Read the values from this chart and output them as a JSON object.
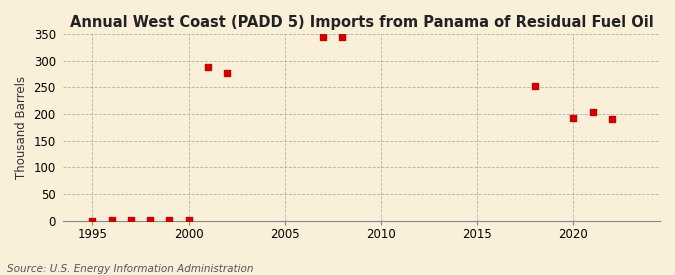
{
  "title": "Annual West Coast (PADD 5) Imports from Panama of Residual Fuel Oil",
  "ylabel": "Thousand Barrels",
  "source": "Source: U.S. Energy Information Administration",
  "background_color": "#faefd9",
  "grid_color": "#aaaaaa",
  "marker_color": "#cc0000",
  "data_points": [
    [
      1995,
      0
    ],
    [
      1996,
      2
    ],
    [
      1997,
      2
    ],
    [
      1998,
      2
    ],
    [
      1999,
      2
    ],
    [
      2000,
      2
    ],
    [
      2001,
      288
    ],
    [
      2002,
      277
    ],
    [
      2007,
      344
    ],
    [
      2008,
      344
    ],
    [
      2018,
      253
    ],
    [
      2020,
      193
    ],
    [
      2021,
      203
    ],
    [
      2022,
      191
    ]
  ],
  "xlim": [
    1993.5,
    2024.5
  ],
  "ylim": [
    0,
    350
  ],
  "xticks": [
    1995,
    2000,
    2005,
    2010,
    2015,
    2020
  ],
  "yticks": [
    0,
    50,
    100,
    150,
    200,
    250,
    300,
    350
  ],
  "title_fontsize": 10.5,
  "label_fontsize": 8.5,
  "tick_fontsize": 8.5,
  "source_fontsize": 7.5
}
